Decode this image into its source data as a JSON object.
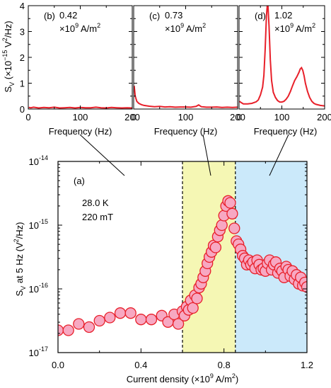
{
  "chart_data": [
    {
      "panel": "(b)",
      "type": "line",
      "annotation": [
        "0.42",
        "×10",
        "9",
        " A/m",
        "2"
      ],
      "xlabel": "Frequency (Hz)",
      "ylabel": "S",
      "ylabel_sub": "V",
      "ylabel_unit": " (×10",
      "ylabel_exp": "−15",
      "ylabel_unit2": " V",
      "ylabel_exp2": "2",
      "ylabel_unit3": "/Hz)",
      "xlim": [
        0,
        200
      ],
      "ylim": [
        0,
        4
      ],
      "xticks": [
        0,
        100,
        200
      ],
      "yticks": [
        0,
        1,
        2,
        3,
        4
      ],
      "line_color": "#e8202a",
      "x": [
        1,
        5,
        10,
        20,
        30,
        40,
        50,
        60,
        70,
        80,
        90,
        100,
        110,
        120,
        130,
        140,
        150,
        160,
        170,
        180,
        190,
        200
      ],
      "y": [
        0.06,
        0.05,
        0.07,
        0.04,
        0.06,
        0.05,
        0.07,
        0.04,
        0.05,
        0.06,
        0.04,
        0.06,
        0.05,
        0.05,
        0.07,
        0.05,
        0.04,
        0.06,
        0.05,
        0.04,
        0.05,
        0.04
      ]
    },
    {
      "panel": "(c)",
      "type": "line",
      "annotation": [
        "0.73",
        "×10",
        "9",
        " A/m",
        "2"
      ],
      "xlabel": "Frequency (Hz)",
      "xlim": [
        0,
        200
      ],
      "ylim": [
        0,
        4
      ],
      "xticks": [
        0,
        100,
        200
      ],
      "line_color": "#e8202a",
      "x": [
        1,
        3,
        6,
        10,
        15,
        20,
        30,
        40,
        50,
        60,
        70,
        80,
        90,
        100,
        110,
        120,
        125,
        130,
        140,
        150,
        160,
        170,
        180,
        190,
        200
      ],
      "y": [
        0.9,
        0.5,
        0.3,
        0.22,
        0.17,
        0.14,
        0.11,
        0.09,
        0.1,
        0.08,
        0.09,
        0.07,
        0.08,
        0.08,
        0.07,
        0.1,
        0.16,
        0.09,
        0.07,
        0.07,
        0.08,
        0.06,
        0.07,
        0.06,
        0.07
      ]
    },
    {
      "panel": "(d)",
      "type": "line",
      "annotation": [
        "1.02",
        "×10",
        "9",
        " A/m",
        "2"
      ],
      "xlabel": "Frequency (Hz)",
      "xlim": [
        0,
        200
      ],
      "ylim": [
        0,
        4
      ],
      "xticks": [
        0,
        100,
        200
      ],
      "line_color": "#e8202a",
      "x": [
        1,
        5,
        10,
        20,
        30,
        40,
        45,
        50,
        55,
        58,
        61,
        64,
        67,
        70,
        73,
        76,
        80,
        85,
        90,
        95,
        100,
        105,
        110,
        115,
        120,
        125,
        130,
        135,
        140,
        143,
        146,
        149,
        152,
        155,
        160,
        165,
        170,
        175,
        180,
        190,
        200
      ],
      "y": [
        0.3,
        0.25,
        0.2,
        0.2,
        0.22,
        0.28,
        0.35,
        0.55,
        0.85,
        1.3,
        2.3,
        3.6,
        4.2,
        3.2,
        1.9,
        1.1,
        0.65,
        0.45,
        0.33,
        0.27,
        0.27,
        0.3,
        0.38,
        0.5,
        0.68,
        0.9,
        1.1,
        1.25,
        1.42,
        1.55,
        1.6,
        1.5,
        1.28,
        1.0,
        0.68,
        0.45,
        0.3,
        0.22,
        0.18,
        0.14,
        0.12
      ]
    },
    {
      "panel": "(a)",
      "type": "scatter",
      "annotation_temp": "28.0 K",
      "annotation_field": "220 mT",
      "xlabel": "Current density (×10",
      "xlabel_exp": "9",
      "xlabel_unit": " A/m",
      "xlabel_exp2": "2",
      "xlabel_close": ")",
      "ylabel": "S",
      "ylabel_sub": "V",
      "ylabel_rest": " at 5 Hz (V",
      "ylabel_exp": "2",
      "ylabel_close": "/Hz)",
      "xlim": [
        0,
        1.2
      ],
      "ylim_log10": [
        -17,
        -14
      ],
      "xticks": [
        0,
        0.4,
        0.8,
        1.2
      ],
      "xtick_labels": [
        "0.0",
        "0.4",
        "0.8",
        "1.2"
      ],
      "ytick_exponents": [
        -17,
        -16,
        -15,
        -14
      ],
      "ytick_base": "10",
      "marker_fill": "#f7a8c2",
      "marker_edge": "#e8202a",
      "regions": [
        {
          "x0": 0.6,
          "x1": 0.855,
          "color": "#f5f7b4"
        },
        {
          "x0": 0.855,
          "x1": 1.2,
          "color": "#cbe9fa"
        }
      ],
      "x": [
        0.0,
        0.05,
        0.1,
        0.15,
        0.2,
        0.25,
        0.3,
        0.35,
        0.4,
        0.45,
        0.5,
        0.53,
        0.56,
        0.58,
        0.6,
        0.61,
        0.62,
        0.63,
        0.64,
        0.65,
        0.66,
        0.67,
        0.68,
        0.69,
        0.7,
        0.71,
        0.72,
        0.73,
        0.74,
        0.75,
        0.76,
        0.77,
        0.78,
        0.79,
        0.8,
        0.81,
        0.82,
        0.83,
        0.84,
        0.85,
        0.86,
        0.87,
        0.88,
        0.89,
        0.9,
        0.91,
        0.92,
        0.93,
        0.94,
        0.95,
        0.96,
        0.97,
        0.98,
        0.99,
        1.0,
        1.01,
        1.02,
        1.03,
        1.04,
        1.05,
        1.06,
        1.07,
        1.08,
        1.09,
        1.1,
        1.11,
        1.12,
        1.13,
        1.14,
        1.15,
        1.16,
        1.17,
        1.18,
        1.19,
        1.2
      ],
      "y_log10": [
        -16.65,
        -16.65,
        -16.55,
        -16.6,
        -16.5,
        -16.45,
        -16.38,
        -16.38,
        -16.48,
        -16.48,
        -16.42,
        -16.52,
        -16.4,
        -16.55,
        -16.35,
        -16.42,
        -16.28,
        -16.33,
        -16.18,
        -16.3,
        -16.1,
        -16.15,
        -15.98,
        -15.92,
        -15.82,
        -15.72,
        -15.6,
        -15.5,
        -15.42,
        -15.32,
        -15.35,
        -15.18,
        -15.08,
        -15.0,
        -14.85,
        -14.7,
        -14.62,
        -14.65,
        -14.82,
        -15.05,
        -15.25,
        -15.3,
        -15.38,
        -15.48,
        -15.52,
        -15.62,
        -15.55,
        -15.62,
        -15.58,
        -15.68,
        -15.55,
        -15.62,
        -15.7,
        -15.68,
        -15.72,
        -15.6,
        -15.55,
        -15.7,
        -15.62,
        -15.58,
        -15.75,
        -15.68,
        -15.72,
        -15.82,
        -15.65,
        -15.7,
        -15.8,
        -15.72,
        -15.85,
        -15.78,
        -15.92,
        -15.82,
        -15.95,
        -15.9,
        -15.97
      ]
    }
  ]
}
